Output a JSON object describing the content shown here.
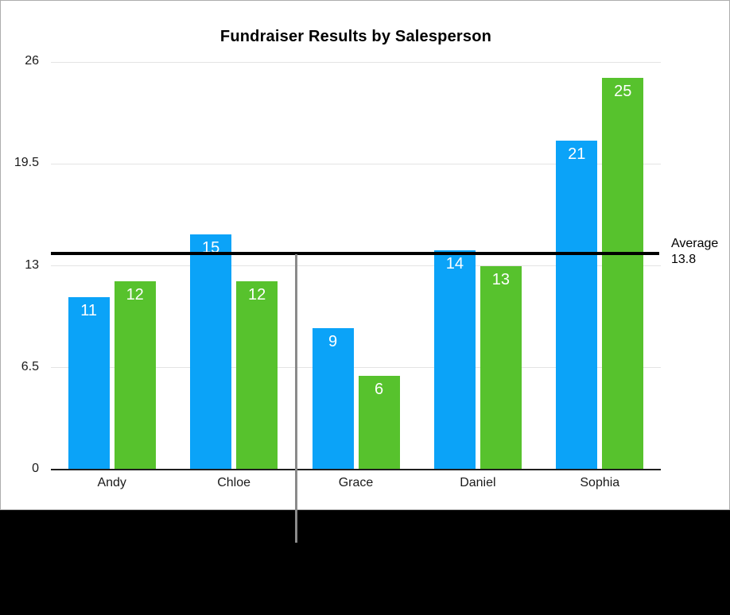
{
  "title": "Fundraiser Results by Salesperson",
  "colors": {
    "blue_series": "#0ba3f8",
    "green_series": "#57c22d",
    "grid": "#e4e4e4",
    "axis": "#1f1f1f",
    "average_line": "#000000",
    "guide_line": "#8a8a8a",
    "bar_label_text": "#ffffff"
  },
  "chart_data": {
    "type": "bar",
    "title": "Fundraiser Results by Salesperson",
    "categories": [
      "Andy",
      "Chloe",
      "Grace",
      "Daniel",
      "Sophia"
    ],
    "series": [
      {
        "name": "blue-series",
        "color": "#0ba3f8",
        "values": [
          11,
          15,
          9,
          14,
          21
        ]
      },
      {
        "name": "green-series",
        "color": "#57c22d",
        "values": [
          12,
          12,
          6,
          13,
          25
        ]
      }
    ],
    "xlabel": "",
    "ylabel": "",
    "ylim": [
      0,
      26
    ],
    "yticks": [
      "0",
      "6.5",
      "13",
      "19.5",
      "26"
    ],
    "ytick_values": [
      0,
      6.5,
      13,
      19.5,
      26
    ],
    "grid": true,
    "legend": "none",
    "bar_value_labels_shown": true,
    "annotations": [
      {
        "type": "reference-line",
        "label": "Average",
        "value_label": "13.8",
        "value": 13.8
      }
    ]
  }
}
